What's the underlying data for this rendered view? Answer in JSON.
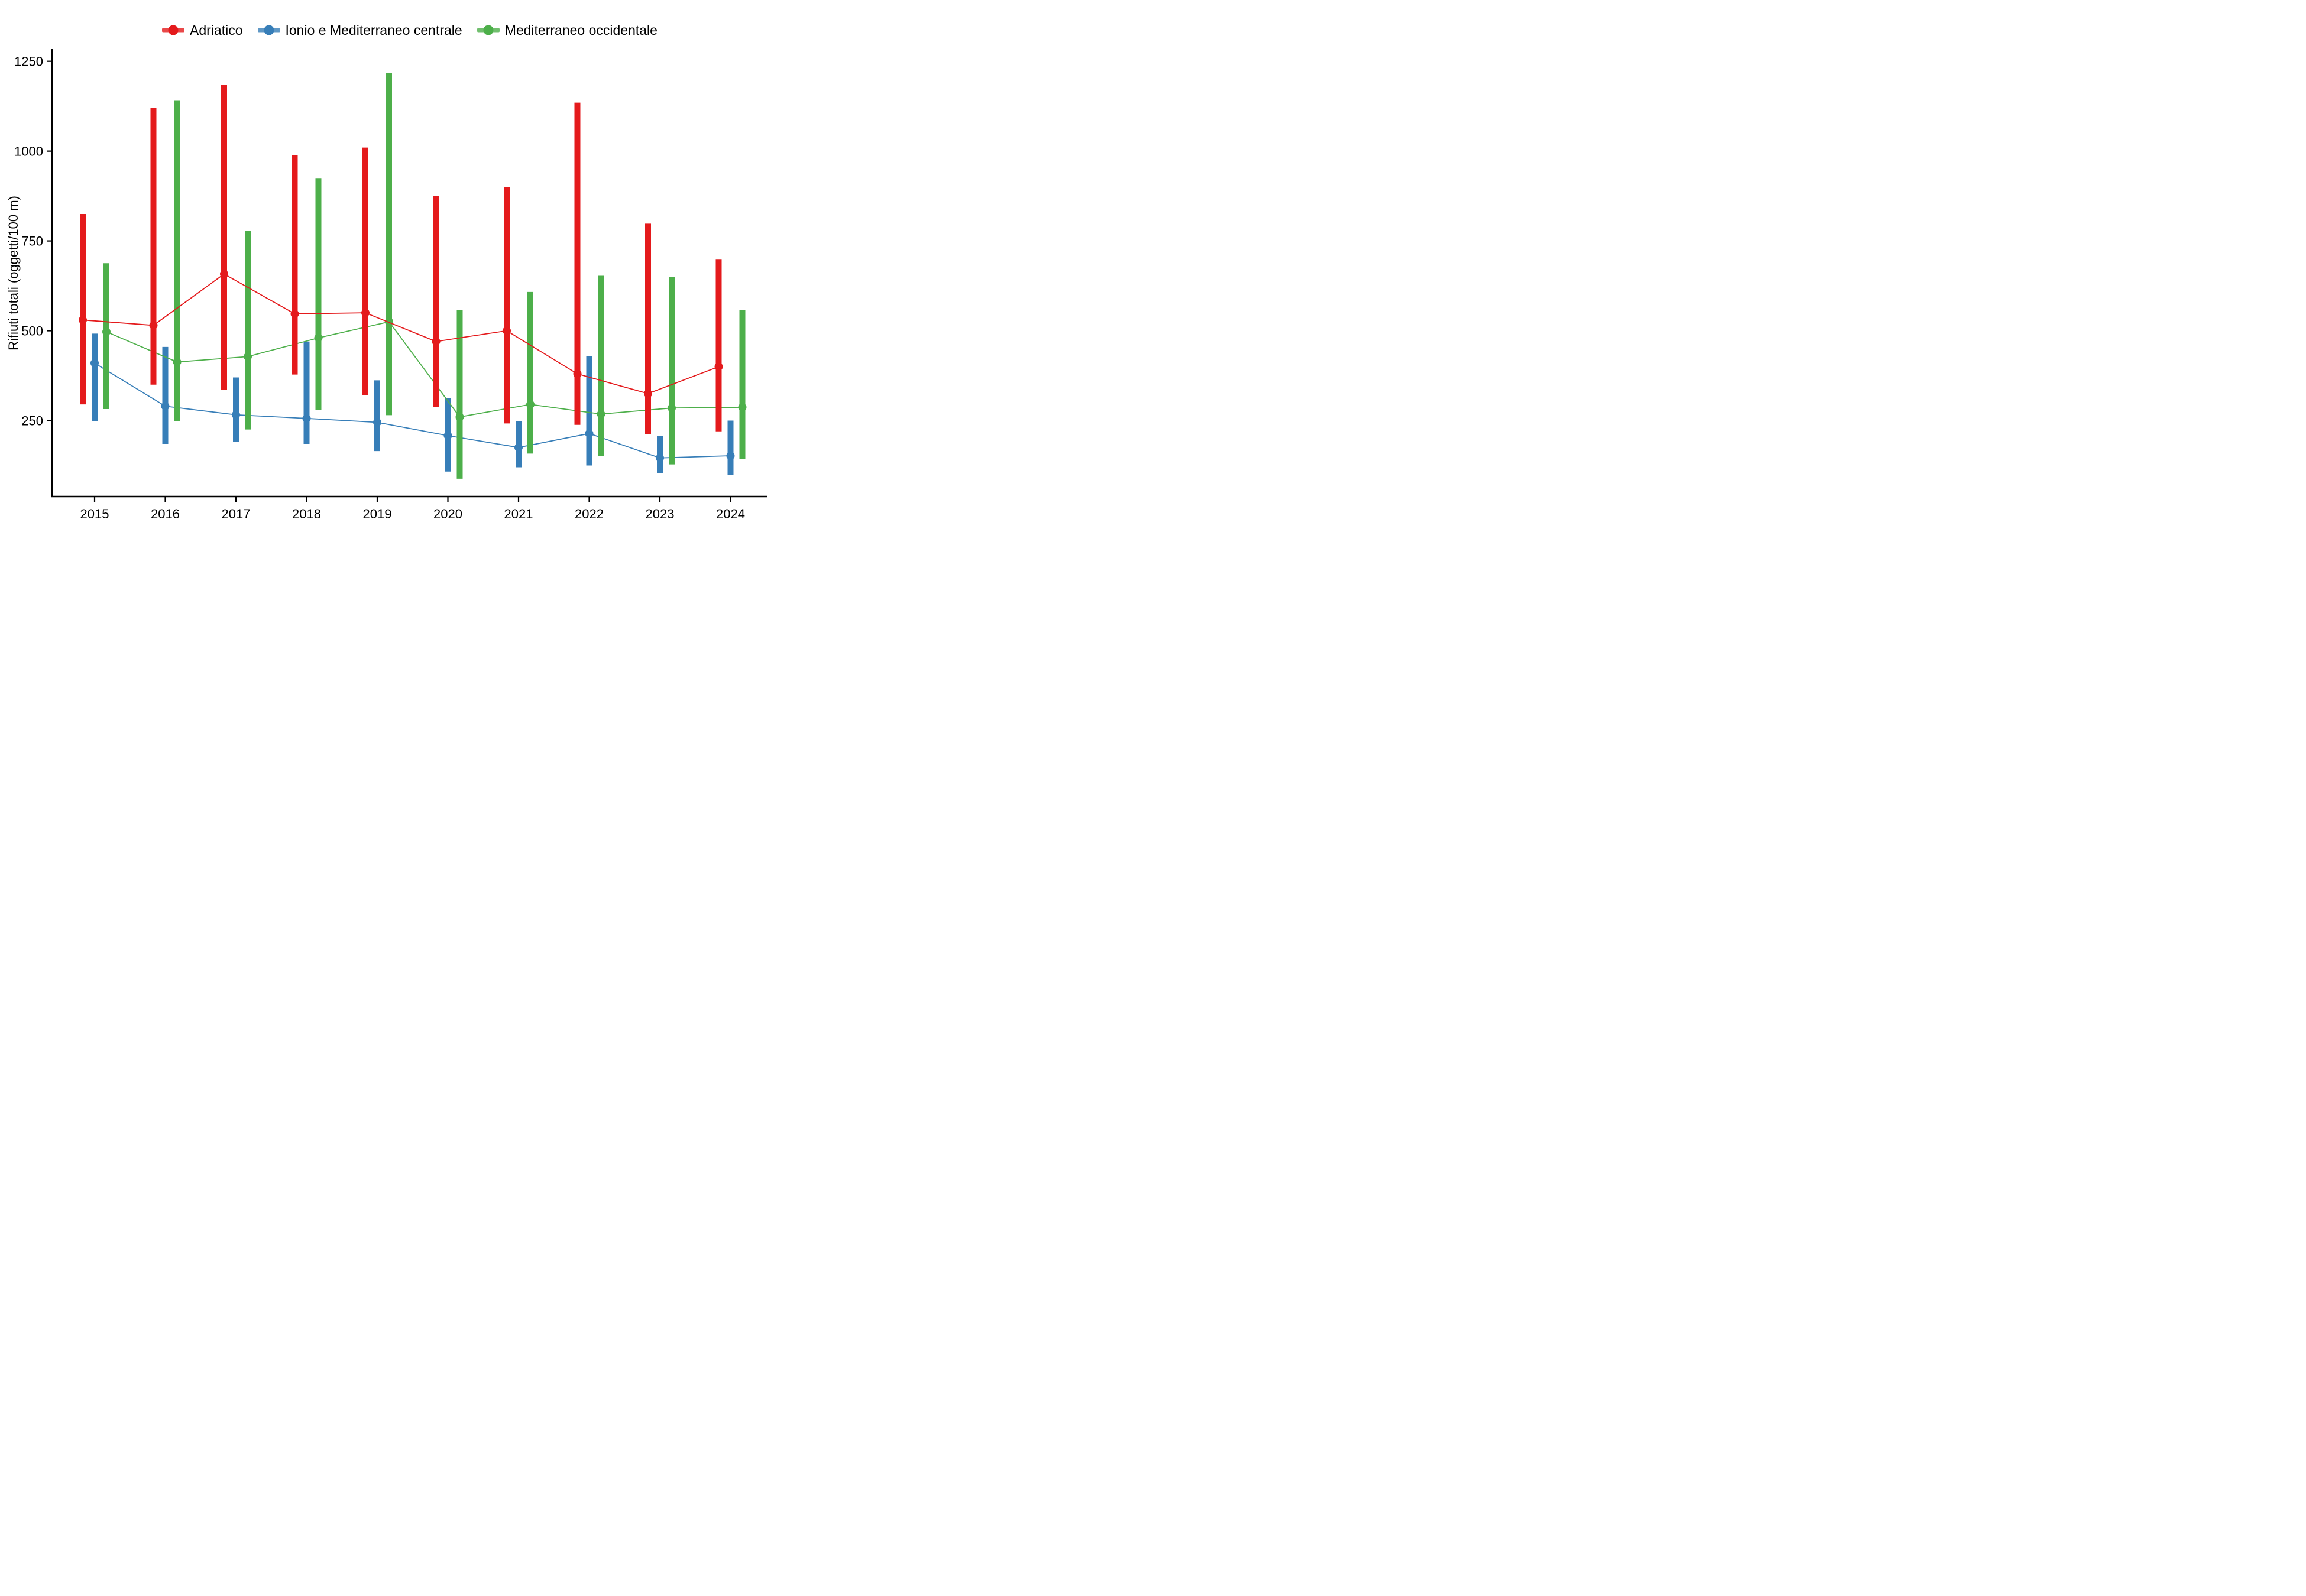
{
  "page": {
    "background_color": "#ffffff",
    "text_color": "#000000"
  },
  "chart_data": {
    "type": "line",
    "subtype": "pointrange-with-error-bars",
    "title": "",
    "xlabel": "",
    "ylabel": "Rifiuti totali (oggetti/100 m)",
    "x": [
      2015,
      2016,
      2017,
      2018,
      2019,
      2020,
      2021,
      2022,
      2023,
      2024
    ],
    "yticks": [
      250,
      500,
      750,
      1000,
      1250
    ],
    "ylim": [
      40,
      1270
    ],
    "grid": false,
    "legend_position": "top-center",
    "axis_color": "#000000",
    "series": [
      {
        "name": "Adriatico",
        "color": "#e41a1c",
        "values": [
          530,
          515,
          658,
          547,
          550,
          470,
          500,
          380,
          325,
          400
        ],
        "lower": [
          295,
          350,
          335,
          378,
          320,
          288,
          242,
          238,
          212,
          220
        ],
        "upper": [
          825,
          1120,
          1185,
          988,
          1010,
          875,
          900,
          1135,
          798,
          698
        ]
      },
      {
        "name": "Ionio e Mediterraneo centrale",
        "color": "#377eb8",
        "values": [
          410,
          290,
          266,
          256,
          245,
          208,
          175,
          214,
          146,
          152
        ],
        "lower": [
          248,
          185,
          190,
          185,
          165,
          108,
          120,
          125,
          103,
          98
        ],
        "upper": [
          492,
          455,
          370,
          470,
          362,
          312,
          248,
          430,
          208,
          250
        ]
      },
      {
        "name": "Mediterraneo occidentale",
        "color": "#4daf4a",
        "values": [
          497,
          413,
          428,
          480,
          525,
          260,
          295,
          268,
          285,
          287
        ],
        "lower": [
          282,
          248,
          225,
          280,
          265,
          88,
          158,
          152,
          128,
          143
        ],
        "upper": [
          688,
          1140,
          778,
          925,
          1218,
          557,
          608,
          653,
          650,
          557
        ]
      }
    ]
  }
}
